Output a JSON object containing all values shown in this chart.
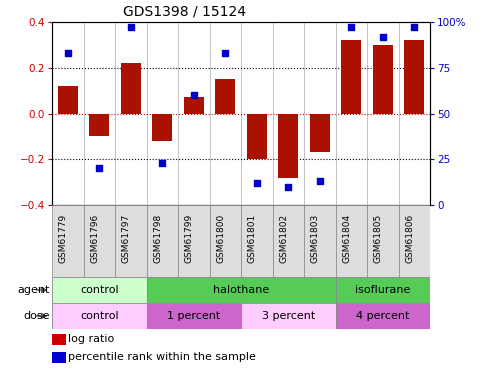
{
  "title": "GDS1398 / 15124",
  "samples": [
    "GSM61779",
    "GSM61796",
    "GSM61797",
    "GSM61798",
    "GSM61799",
    "GSM61800",
    "GSM61801",
    "GSM61802",
    "GSM61803",
    "GSM61804",
    "GSM61805",
    "GSM61806"
  ],
  "log_ratio": [
    0.12,
    -0.1,
    0.22,
    -0.12,
    0.07,
    0.15,
    -0.2,
    -0.28,
    -0.17,
    0.32,
    0.3,
    0.32
  ],
  "percentile_rank": [
    83,
    20,
    97,
    23,
    60,
    83,
    12,
    10,
    13,
    97,
    92,
    97
  ],
  "ylim": [
    -0.4,
    0.4
  ],
  "yticks": [
    -0.4,
    -0.2,
    0.0,
    0.2,
    0.4
  ],
  "y2lim": [
    0,
    100
  ],
  "y2ticks": [
    0,
    25,
    50,
    75,
    100
  ],
  "y2ticklabels": [
    "0",
    "25",
    "50",
    "75",
    "100%"
  ],
  "bar_color": "#aa1100",
  "dot_color": "#0000cc",
  "agent_groups": [
    {
      "label": "control",
      "start": 0,
      "end": 3,
      "facecolor": "#ccffcc",
      "edgecolor": "#888888"
    },
    {
      "label": "halothane",
      "start": 3,
      "end": 9,
      "facecolor": "#55cc55",
      "edgecolor": "#888888"
    },
    {
      "label": "isoflurane",
      "start": 9,
      "end": 12,
      "facecolor": "#55cc55",
      "edgecolor": "#888888"
    }
  ],
  "dose_groups": [
    {
      "label": "control",
      "start": 0,
      "end": 3,
      "facecolor": "#ffccff",
      "edgecolor": "#888888"
    },
    {
      "label": "1 percent",
      "start": 3,
      "end": 6,
      "facecolor": "#cc66cc",
      "edgecolor": "#888888"
    },
    {
      "label": "3 percent",
      "start": 6,
      "end": 9,
      "facecolor": "#ffccff",
      "edgecolor": "#888888"
    },
    {
      "label": "4 percent",
      "start": 9,
      "end": 12,
      "facecolor": "#cc66cc",
      "edgecolor": "#888888"
    }
  ],
  "sample_cell_color": "#dddddd",
  "sample_cell_edge": "#888888",
  "xlabel_fontsize": 6.5,
  "tick_fontsize": 7.5,
  "legend_fontsize": 8,
  "row_label_fontsize": 8,
  "title_fontsize": 10,
  "bg_color": "#ffffff"
}
